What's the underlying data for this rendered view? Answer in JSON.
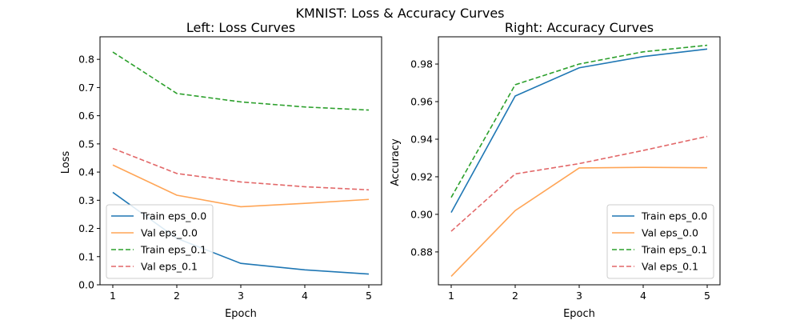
{
  "figure": {
    "title": "KMNIST: Loss & Accuracy Curves"
  },
  "chart_data": [
    {
      "type": "line",
      "title": "Left: Loss Curves",
      "xlabel": "Epoch",
      "ylabel": "Loss",
      "x": [
        1,
        2,
        3,
        4,
        5
      ],
      "xticks": [
        1,
        2,
        3,
        4,
        5
      ],
      "xlim": [
        0.8,
        5.2
      ],
      "ylim": [
        0.0,
        0.88
      ],
      "yticks": [
        0.0,
        0.1,
        0.2,
        0.3,
        0.4,
        0.5,
        0.6,
        0.7,
        0.8
      ],
      "ytick_labels": [
        "0.0",
        "0.1",
        "0.2",
        "0.3",
        "0.4",
        "0.5",
        "0.6",
        "0.7",
        "0.8"
      ],
      "grid": false,
      "legend_position": "lower-left",
      "series": [
        {
          "name": "Train eps_0.0",
          "values": [
            0.328,
            0.165,
            0.076,
            0.053,
            0.038
          ],
          "color": "#1f77b4",
          "dash": "solid",
          "opacity": 1
        },
        {
          "name": "Val eps_0.0",
          "values": [
            0.425,
            0.318,
            0.277,
            0.289,
            0.303
          ],
          "color": "#ff7f0e",
          "dash": "solid",
          "opacity": 0.7
        },
        {
          "name": "Train eps_0.1",
          "values": [
            0.826,
            0.679,
            0.649,
            0.631,
            0.62
          ],
          "color": "#2ca02c",
          "dash": "dashed",
          "opacity": 1
        },
        {
          "name": "Val eps_0.1",
          "values": [
            0.484,
            0.395,
            0.365,
            0.348,
            0.337
          ],
          "color": "#d62728",
          "dash": "dashed",
          "opacity": 0.7
        }
      ]
    },
    {
      "type": "line",
      "title": "Right: Accuracy Curves",
      "xlabel": "Epoch",
      "ylabel": "Accuracy",
      "x": [
        1,
        2,
        3,
        4,
        5
      ],
      "xticks": [
        1,
        2,
        3,
        4,
        5
      ],
      "xlim": [
        0.8,
        5.2
      ],
      "ylim": [
        0.8625,
        0.9945
      ],
      "yticks": [
        0.88,
        0.9,
        0.92,
        0.94,
        0.96,
        0.98
      ],
      "ytick_labels": [
        "0.88",
        "0.90",
        "0.92",
        "0.94",
        "0.96",
        "0.98"
      ],
      "grid": false,
      "legend_position": "lower-right",
      "series": [
        {
          "name": "Train eps_0.0",
          "values": [
            0.901,
            0.963,
            0.978,
            0.984,
            0.988
          ],
          "color": "#1f77b4",
          "dash": "solid",
          "opacity": 1
        },
        {
          "name": "Val eps_0.0",
          "values": [
            0.867,
            0.902,
            0.9247,
            0.925,
            0.9248
          ],
          "color": "#ff7f0e",
          "dash": "solid",
          "opacity": 0.7
        },
        {
          "name": "Train eps_0.1",
          "values": [
            0.909,
            0.969,
            0.98,
            0.9865,
            0.99
          ],
          "color": "#2ca02c",
          "dash": "dashed",
          "opacity": 1
        },
        {
          "name": "Val eps_0.1",
          "values": [
            0.891,
            0.9215,
            0.927,
            0.934,
            0.9415
          ],
          "color": "#d62728",
          "dash": "dashed",
          "opacity": 0.7
        }
      ]
    }
  ]
}
